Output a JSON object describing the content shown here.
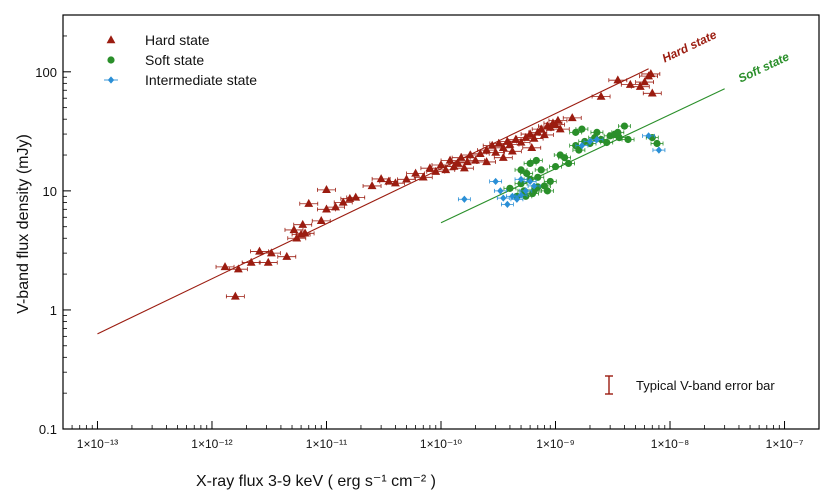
{
  "chart_data": {
    "type": "scatter",
    "title": "",
    "xlabel": "X-ray flux 3-9 keV ( erg s⁻¹ cm⁻² )",
    "ylabel": "V-band flux density (mJy)",
    "xscale": "log",
    "yscale": "log",
    "xlim": [
      5e-14,
      2e-07
    ],
    "ylim": [
      0.1,
      300
    ],
    "x_ticks": [
      1e-13,
      1e-12,
      1e-11,
      1e-10,
      1e-09,
      1e-08,
      1e-07
    ],
    "x_tick_labels": [
      "1×10⁻¹³",
      "1×10⁻¹²",
      "1×10⁻¹¹",
      "1×10⁻¹⁰",
      "1×10⁻⁹",
      "1×10⁻⁸",
      "1×10⁻⁷"
    ],
    "y_ticks": [
      0.1,
      1,
      10,
      100
    ],
    "y_tick_labels": [
      "0.1",
      "1",
      "10",
      "100"
    ],
    "legend_position": "top-left",
    "series": [
      {
        "name": "Hard state",
        "marker": "triangle",
        "color": "#9b1c10",
        "points": [
          [
            1.3e-12,
            2.3
          ],
          [
            1.7e-12,
            2.2
          ],
          [
            1.6e-12,
            1.3
          ],
          [
            2.2e-12,
            2.5
          ],
          [
            2.6e-12,
            3.1
          ],
          [
            3.3e-12,
            3.0
          ],
          [
            3.1e-12,
            2.5
          ],
          [
            4.5e-12,
            2.8
          ],
          [
            5.2e-12,
            4.7
          ],
          [
            6e-12,
            4.3
          ],
          [
            6.2e-12,
            5.2
          ],
          [
            5.5e-12,
            4.0
          ],
          [
            6.5e-12,
            4.4
          ],
          [
            7e-12,
            7.8
          ],
          [
            9e-12,
            5.6
          ],
          [
            1e-11,
            7.0
          ],
          [
            1.2e-11,
            7.3
          ],
          [
            1.4e-11,
            8.0
          ],
          [
            1.6e-11,
            8.6
          ],
          [
            1.8e-11,
            8.8
          ],
          [
            1e-11,
            10.2
          ],
          [
            2.5e-11,
            11.0
          ],
          [
            3e-11,
            12.6
          ],
          [
            3.5e-11,
            12.0
          ],
          [
            4e-11,
            11.6
          ],
          [
            5e-11,
            12.5
          ],
          [
            6e-11,
            14.0
          ],
          [
            7e-11,
            13.0
          ],
          [
            8e-11,
            15.5
          ],
          [
            9e-11,
            14.5
          ],
          [
            1e-10,
            16.5
          ],
          [
            1.1e-10,
            15.0
          ],
          [
            1.2e-10,
            18.0
          ],
          [
            1.3e-10,
            16.0
          ],
          [
            1.4e-10,
            17.2
          ],
          [
            1.5e-10,
            19.0
          ],
          [
            1.6e-10,
            15.5
          ],
          [
            1.7e-10,
            17.5
          ],
          [
            1.8e-10,
            20.0
          ],
          [
            2e-10,
            18.0
          ],
          [
            2.2e-10,
            20.5
          ],
          [
            2.5e-10,
            22.0
          ],
          [
            2.8e-10,
            24.0
          ],
          [
            3e-10,
            21.0
          ],
          [
            3.2e-10,
            25.0
          ],
          [
            3.5e-10,
            23.0
          ],
          [
            3.8e-10,
            26.0
          ],
          [
            4e-10,
            24.5
          ],
          [
            4.5e-10,
            27.0
          ],
          [
            5e-10,
            25.5
          ],
          [
            5.5e-10,
            28.0
          ],
          [
            6e-10,
            30.0
          ],
          [
            6.5e-10,
            27.5
          ],
          [
            7e-10,
            31.0
          ],
          [
            7.5e-10,
            33.0
          ],
          [
            8e-10,
            29.5
          ],
          [
            8.5e-10,
            35.0
          ],
          [
            9e-10,
            34.0
          ],
          [
            9.5e-10,
            37.0
          ],
          [
            1e-09,
            36.0
          ],
          [
            1.05e-09,
            39.0
          ],
          [
            1.1e-09,
            33.0
          ],
          [
            1.4e-09,
            41.0
          ],
          [
            3.5e-10,
            19.0
          ],
          [
            4.2e-10,
            21.5
          ],
          [
            6.2e-10,
            23.0
          ],
          [
            2.5e-10,
            17.5
          ],
          [
            3.5e-09,
            85.0
          ],
          [
            4.5e-09,
            78.0
          ],
          [
            5.5e-09,
            75.0
          ],
          [
            6e-09,
            82.0
          ],
          [
            6.5e-09,
            92.0
          ],
          [
            7e-09,
            66.0
          ],
          [
            2.5e-09,
            62.0
          ],
          [
            6.8e-09,
            96.0
          ]
        ]
      },
      {
        "name": "Soft state",
        "marker": "circle",
        "color": "#2a8f2a",
        "points": [
          [
            4e-10,
            10.5
          ],
          [
            4.6e-10,
            9.0
          ],
          [
            5e-10,
            11.5
          ],
          [
            5.3e-10,
            10.0
          ],
          [
            5.6e-10,
            14.0
          ],
          [
            6e-10,
            12.5
          ],
          [
            6.5e-10,
            10.0
          ],
          [
            7e-10,
            13.0
          ],
          [
            7.5e-10,
            15.0
          ],
          [
            8e-10,
            11.0
          ],
          [
            8.5e-10,
            10.0
          ],
          [
            9e-10,
            12.0
          ],
          [
            6e-10,
            17.0
          ],
          [
            6.8e-10,
            18.0
          ],
          [
            1e-09,
            16.0
          ],
          [
            1.1e-09,
            20.0
          ],
          [
            1.2e-09,
            19.0
          ],
          [
            1.3e-09,
            17.0
          ],
          [
            1.5e-09,
            24.0
          ],
          [
            1.6e-09,
            22.0
          ],
          [
            1.8e-09,
            26.0
          ],
          [
            2e-09,
            25.0
          ],
          [
            2.2e-09,
            28.0
          ],
          [
            2.5e-09,
            27.0
          ],
          [
            2.8e-09,
            25.5
          ],
          [
            3e-09,
            29.0
          ],
          [
            3.3e-09,
            30.0
          ],
          [
            3.6e-09,
            28.0
          ],
          [
            4e-09,
            35.0
          ],
          [
            4.3e-09,
            27.0
          ],
          [
            1.5e-09,
            31.0
          ],
          [
            1.7e-09,
            33.0
          ],
          [
            2.3e-09,
            31.0
          ],
          [
            5e-10,
            15.0
          ],
          [
            5.5e-10,
            9.0
          ],
          [
            6.3e-10,
            9.5
          ],
          [
            7e-10,
            10.8
          ],
          [
            3.5e-09,
            31.0
          ],
          [
            7e-09,
            28.0
          ],
          [
            7.7e-09,
            25.0
          ]
        ]
      },
      {
        "name": "Intermediate state",
        "marker": "diamond",
        "color": "#2a8fd6",
        "points": [
          [
            1.6e-10,
            8.5
          ],
          [
            3e-10,
            12.0
          ],
          [
            3.3e-10,
            10.0
          ],
          [
            3.5e-10,
            8.7
          ],
          [
            3.8e-10,
            7.7
          ],
          [
            4.2e-10,
            9.0
          ],
          [
            4.6e-10,
            8.5
          ],
          [
            5e-10,
            9.2
          ],
          [
            5.5e-10,
            10.0
          ],
          [
            6e-10,
            12.0
          ],
          [
            6.5e-10,
            11.0
          ],
          [
            5e-10,
            12.5
          ],
          [
            1.7e-09,
            24.0
          ],
          [
            2e-09,
            26.0
          ],
          [
            2.3e-09,
            27.0
          ],
          [
            6.5e-09,
            29.0
          ],
          [
            8e-09,
            22.0
          ]
        ]
      }
    ],
    "fits": [
      {
        "name": "Hard state",
        "label": "Hard state",
        "color": "#9b1c10",
        "x": [
          1e-13,
          6.5e-09
        ],
        "y": [
          0.63,
          106
        ]
      },
      {
        "name": "Soft state",
        "label": "Soft state",
        "color": "#2a8f2a",
        "x": [
          1e-10,
          3e-08
        ],
        "y": [
          5.4,
          72
        ]
      }
    ],
    "annotation": "Typical V-band error bar",
    "typical_error": {
      "x_label_anchor": "bottom-right",
      "y": 0.9
    }
  }
}
